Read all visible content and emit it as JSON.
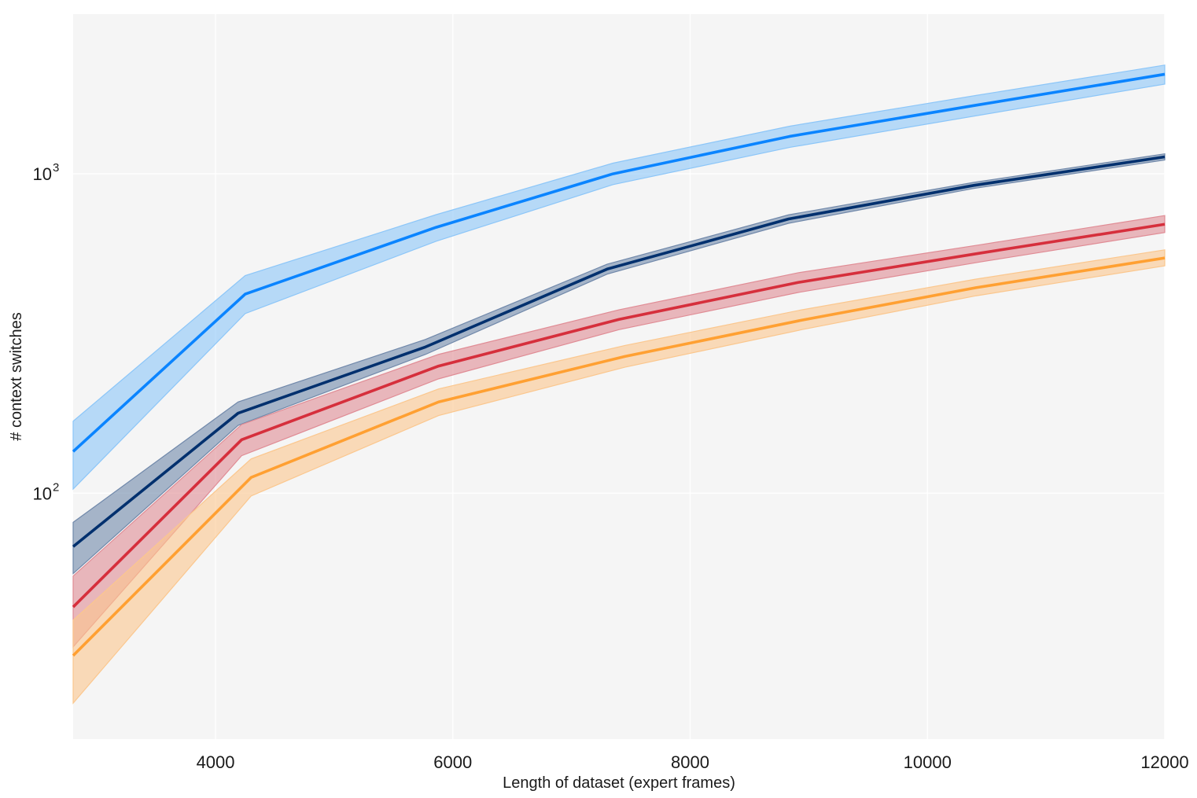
{
  "chart_data": {
    "type": "line",
    "title": "",
    "xlabel": "Length of dataset (expert frames)",
    "ylabel": "# context switches",
    "yscale": "log",
    "xlim": [
      2800,
      12000
    ],
    "ylim_log10": [
      1.23,
      3.5
    ],
    "grid": true,
    "legend": "none",
    "x_ticks": [
      {
        "value": 4000,
        "label": "4000"
      },
      {
        "value": 6000,
        "label": "6000"
      },
      {
        "value": 8000,
        "label": "8000"
      },
      {
        "value": 10000,
        "label": "10000"
      },
      {
        "value": 12000,
        "label": "12000"
      }
    ],
    "y_ticks": [
      {
        "value": 100,
        "base": "10",
        "exp": "2"
      },
      {
        "value": 1000,
        "base": "10",
        "exp": "3"
      }
    ],
    "series": [
      {
        "name": "series-light-blue",
        "color": "#0a84ff",
        "band_color": "#8cc6f8",
        "x": [
          2800,
          4250,
          5860,
          7350,
          8840,
          10410,
          12000
        ],
        "y": [
          135,
          420,
          680,
          1000,
          1310,
          1640,
          2050
        ],
        "lower": [
          103,
          365,
          615,
          925,
          1210,
          1520,
          1910
        ],
        "upper": [
          168,
          480,
          745,
          1080,
          1410,
          1760,
          2190
        ]
      },
      {
        "name": "series-dark-navy",
        "color": "#00306e",
        "band_color": "#7088aa",
        "x": [
          2800,
          4190,
          5770,
          7300,
          8830,
          10390,
          12000
        ],
        "y": [
          68,
          178,
          287,
          503,
          722,
          920,
          1130
        ],
        "lower": [
          56,
          163,
          272,
          485,
          700,
          900,
          1105
        ],
        "upper": [
          81,
          193,
          303,
          521,
          744,
          940,
          1155
        ]
      },
      {
        "name": "series-red",
        "color": "#d62f3c",
        "band_color": "#e08c95",
        "x": [
          2800,
          4220,
          5880,
          7400,
          8910,
          10450,
          12000
        ],
        "y": [
          44,
          147,
          250,
          350,
          457,
          565,
          695
        ],
        "lower": [
          33,
          131,
          228,
          325,
          425,
          530,
          655
        ],
        "upper": [
          55,
          164,
          272,
          375,
          490,
          600,
          740
        ]
      },
      {
        "name": "series-orange",
        "color": "#ffa032",
        "band_color": "#fbc78e",
        "x": [
          2800,
          4300,
          5880,
          7450,
          8940,
          10410,
          12000
        ],
        "y": [
          31,
          112,
          193,
          268,
          348,
          440,
          545
        ],
        "lower": [
          22,
          98,
          175,
          248,
          325,
          415,
          515
        ],
        "upper": [
          40,
          128,
          212,
          290,
          375,
          468,
          578
        ]
      }
    ]
  }
}
